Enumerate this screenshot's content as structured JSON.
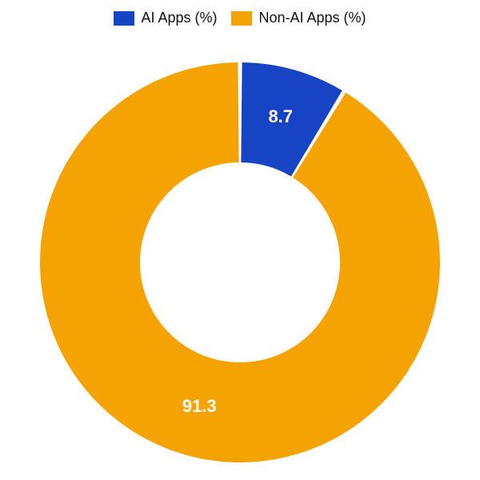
{
  "chart": {
    "type": "donut",
    "background_color": "#ffffff",
    "outer_radius": 250,
    "inner_radius": 125,
    "start_angle_deg": -90,
    "slice_gap_deg": 1.2,
    "label_fontsize": 22,
    "label_color": "#ffffff",
    "label_radius": 188,
    "legend": {
      "swatch_width": 26,
      "swatch_height": 18,
      "fontsize": 18,
      "text_color": "#111111"
    },
    "slices": [
      {
        "label": "AI Apps (%)",
        "value": 8.7,
        "display": "8.7",
        "color": "#1644c4"
      },
      {
        "label": "Non-AI Apps (%)",
        "value": 91.3,
        "display": "91.3",
        "color": "#f5a302"
      }
    ]
  }
}
